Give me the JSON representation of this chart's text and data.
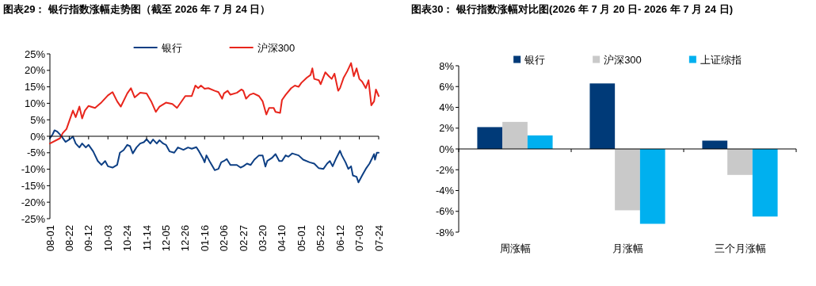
{
  "chart_data": [
    {
      "type": "line",
      "title": "图表29：  银行指数涨幅走势图（截至 2026 年 7 月 24 日）",
      "legend": "top",
      "xlim": [
        "2025-08-01",
        "2026-07-24"
      ],
      "xticks": [
        {
          "value": "2025-08-01",
          "label": "08-01"
        },
        {
          "value": "2025-08-22",
          "label": "08-22"
        },
        {
          "value": "2025-09-12",
          "label": "09-12"
        },
        {
          "value": "2025-10-03",
          "label": "10-03"
        },
        {
          "value": "2025-10-24",
          "label": "10-24"
        },
        {
          "value": "2025-11-14",
          "label": "11-14"
        },
        {
          "value": "2025-12-05",
          "label": "12-05"
        },
        {
          "value": "2025-12-26",
          "label": "12-26"
        },
        {
          "value": "2026-01-16",
          "label": "01-16"
        },
        {
          "value": "2026-02-06",
          "label": "02-06"
        },
        {
          "value": "2026-02-27",
          "label": "02-27"
        },
        {
          "value": "2026-03-20",
          "label": "03-20"
        },
        {
          "value": "2026-04-10",
          "label": "04-10"
        },
        {
          "value": "2026-05-01",
          "label": "05-01"
        },
        {
          "value": "2026-05-22",
          "label": "05-22"
        },
        {
          "value": "2026-06-12",
          "label": "06-12"
        },
        {
          "value": "2026-07-03",
          "label": "07-03"
        },
        {
          "value": "2026-07-24",
          "label": "07-24"
        }
      ],
      "ylim": [
        -25,
        25
      ],
      "yticks": [
        {
          "value": -25,
          "label": "-25%"
        },
        {
          "value": -20,
          "label": "-20%"
        },
        {
          "value": -15,
          "label": "-15%"
        },
        {
          "value": -10,
          "label": "-10%"
        },
        {
          "value": -5,
          "label": "-5%"
        },
        {
          "value": 0,
          "label": "0%"
        },
        {
          "value": 5,
          "label": "5%"
        },
        {
          "value": 10,
          "label": "10%"
        },
        {
          "value": 15,
          "label": "15%"
        },
        {
          "value": 20,
          "label": "20%"
        },
        {
          "value": 25,
          "label": "25%"
        }
      ],
      "series": [
        {
          "name": "银行",
          "color": "#0d3f84",
          "x": [
            "2025-08-01",
            "2025-08-04",
            "2025-08-06",
            "2025-08-09",
            "2025-08-13",
            "2025-08-18",
            "2025-08-22",
            "2025-08-26",
            "2025-08-29",
            "2025-09-02",
            "2025-09-05",
            "2025-09-09",
            "2025-09-12",
            "2025-09-17",
            "2025-09-22",
            "2025-09-26",
            "2025-09-30",
            "2025-10-03",
            "2025-10-08",
            "2025-10-13",
            "2025-10-16",
            "2025-10-20",
            "2025-10-24",
            "2025-10-27",
            "2025-10-30",
            "2025-11-03",
            "2025-11-07",
            "2025-11-11",
            "2025-11-14",
            "2025-11-18",
            "2025-11-21",
            "2025-11-25",
            "2025-11-28",
            "2025-12-02",
            "2025-12-05",
            "2025-12-09",
            "2025-12-14",
            "2025-12-18",
            "2025-12-24",
            "2025-12-29",
            "2026-01-02",
            "2026-01-07",
            "2026-01-10",
            "2026-01-14",
            "2026-01-16",
            "2026-01-18",
            "2026-01-22",
            "2026-01-27",
            "2026-01-31",
            "2026-02-03",
            "2026-02-06",
            "2026-02-09",
            "2026-02-13",
            "2026-02-20",
            "2026-02-24",
            "2026-02-27",
            "2026-03-03",
            "2026-03-07",
            "2026-03-11",
            "2026-03-16",
            "2026-03-20",
            "2026-03-23",
            "2026-03-25",
            "2026-03-30",
            "2026-04-03",
            "2026-04-07",
            "2026-04-10",
            "2026-04-14",
            "2026-04-17",
            "2026-04-21",
            "2026-04-28",
            "2026-05-03",
            "2026-05-10",
            "2026-05-15",
            "2026-05-20",
            "2026-05-25",
            "2026-05-29",
            "2026-06-01",
            "2026-06-04",
            "2026-06-08",
            "2026-06-12",
            "2026-06-14",
            "2026-06-18",
            "2026-06-21",
            "2026-06-24",
            "2026-06-26",
            "2026-06-30",
            "2026-07-02",
            "2026-07-06",
            "2026-07-10",
            "2026-07-14",
            "2026-07-17",
            "2026-07-19",
            "2026-07-20",
            "2026-07-22",
            "2026-07-24"
          ],
          "values": [
            -0.6,
            0.6,
            1.8,
            1.4,
            0.2,
            -1.7,
            -1.0,
            -0.1,
            -2.2,
            -3.4,
            -2.2,
            -3.4,
            -2.6,
            -4.6,
            -7.5,
            -8.7,
            -7.5,
            -9.1,
            -9.5,
            -8.7,
            -5.0,
            -4.2,
            -2.6,
            -3.0,
            -5.2,
            -3.4,
            -2.2,
            -1.8,
            -0.9,
            -2.2,
            -1.0,
            -2.2,
            -1.2,
            -2.2,
            -2.6,
            -4.6,
            -5.0,
            -3.4,
            -4.1,
            -3.4,
            -3.8,
            -3.3,
            -4.6,
            -6.6,
            -7.9,
            -5.8,
            -7.9,
            -10.3,
            -9.9,
            -7.9,
            -7.5,
            -6.9,
            -8.7,
            -8.7,
            -9.5,
            -9.1,
            -8.3,
            -8.7,
            -7.1,
            -5.8,
            -5.8,
            -9.2,
            -7.5,
            -6.6,
            -5.4,
            -7.5,
            -7.5,
            -5.8,
            -6.2,
            -5.2,
            -5.8,
            -7.1,
            -7.9,
            -8.3,
            -9.7,
            -9.9,
            -8.3,
            -7.5,
            -9.1,
            -6.6,
            -4.4,
            -5.8,
            -7.9,
            -9.9,
            -9.1,
            -11.9,
            -12.3,
            -14.0,
            -11.9,
            -9.9,
            -8.3,
            -6.6,
            -5.4,
            -7.1,
            -5.0,
            -5.0
          ]
        },
        {
          "name": "沪深300",
          "color": "#e8251c",
          "x": [
            "2025-08-01",
            "2025-08-12",
            "2025-08-15",
            "2025-08-19",
            "2025-08-22",
            "2025-08-26",
            "2025-08-29",
            "2025-09-02",
            "2025-09-05",
            "2025-09-08",
            "2025-09-12",
            "2025-09-19",
            "2025-09-26",
            "2025-10-03",
            "2025-10-08",
            "2025-10-13",
            "2025-10-17",
            "2025-10-24",
            "2025-10-28",
            "2025-11-01",
            "2025-11-07",
            "2025-11-14",
            "2025-11-19",
            "2025-11-24",
            "2025-11-28",
            "2025-12-05",
            "2025-12-12",
            "2025-12-17",
            "2025-12-26",
            "2026-01-02",
            "2026-01-06",
            "2026-01-09",
            "2026-01-12",
            "2026-01-16",
            "2026-01-20",
            "2026-01-27",
            "2026-01-31",
            "2026-02-04",
            "2026-02-06",
            "2026-02-10",
            "2026-02-13",
            "2026-02-20",
            "2026-02-25",
            "2026-02-27",
            "2026-03-02",
            "2026-03-06",
            "2026-03-10",
            "2026-03-16",
            "2026-03-20",
            "2026-03-24",
            "2026-03-27",
            "2026-04-01",
            "2026-04-03",
            "2026-04-08",
            "2026-04-10",
            "2026-04-14",
            "2026-04-20",
            "2026-04-24",
            "2026-04-28",
            "2026-05-01",
            "2026-05-07",
            "2026-05-11",
            "2026-05-13",
            "2026-05-15",
            "2026-05-20",
            "2026-05-22",
            "2026-05-27",
            "2026-05-31",
            "2026-06-03",
            "2026-06-06",
            "2026-06-10",
            "2026-06-12",
            "2026-06-16",
            "2026-06-20",
            "2026-06-24",
            "2026-06-27",
            "2026-06-30",
            "2026-07-03",
            "2026-07-06",
            "2026-07-10",
            "2026-07-13",
            "2026-07-16",
            "2026-07-19",
            "2026-07-21",
            "2026-07-24"
          ],
          "values": [
            -2.2,
            -0.6,
            1.0,
            2.2,
            4.6,
            7.8,
            5.8,
            9.0,
            5.4,
            7.8,
            9.2,
            8.6,
            10.3,
            12.4,
            13.4,
            10.6,
            9.0,
            13.0,
            14.6,
            11.8,
            13.2,
            13.0,
            10.6,
            7.4,
            9.0,
            10.2,
            9.8,
            8.6,
            12.2,
            12.2,
            15.4,
            14.6,
            15.4,
            14.4,
            14.6,
            13.8,
            13.4,
            11.4,
            13.0,
            13.8,
            12.6,
            13.2,
            14.2,
            13.8,
            11.4,
            12.6,
            13.0,
            12.2,
            10.6,
            6.6,
            8.6,
            8.6,
            7.4,
            7.1,
            11.0,
            12.6,
            14.6,
            15.4,
            15.0,
            16.2,
            17.8,
            18.6,
            20.6,
            17.4,
            17.0,
            15.8,
            19.4,
            18.2,
            17.4,
            19.0,
            13.8,
            14.6,
            17.8,
            19.8,
            22.2,
            18.2,
            20.6,
            17.4,
            16.6,
            14.6,
            17.0,
            9.4,
            10.6,
            14.2,
            12.2
          ]
        }
      ]
    },
    {
      "type": "bar",
      "title": "图表30：  银行指数涨幅对比图(2026 年 7 月 20 日- 2026 年 7 月 24 日)",
      "legend": "top",
      "categories": [
        "周涨幅",
        "月涨幅",
        "三个月涨幅"
      ],
      "ylim": [
        -8,
        8
      ],
      "yticks": [
        {
          "value": -8,
          "label": "-8%"
        },
        {
          "value": -6,
          "label": "-6%"
        },
        {
          "value": -4,
          "label": "-4%"
        },
        {
          "value": -2,
          "label": "-2%"
        },
        {
          "value": 0,
          "label": "0%"
        },
        {
          "value": 2,
          "label": "2%"
        },
        {
          "value": 4,
          "label": "4%"
        },
        {
          "value": 6,
          "label": "6%"
        },
        {
          "value": 8,
          "label": "8%"
        }
      ],
      "series": [
        {
          "name": "银行",
          "color": "#003a78",
          "values": [
            2.1,
            6.3,
            0.8
          ]
        },
        {
          "name": "沪深300",
          "color": "#c9c9c9",
          "values": [
            2.6,
            -5.9,
            -2.5
          ]
        },
        {
          "name": "上证综指",
          "color": "#00b0ef",
          "values": [
            1.3,
            -7.2,
            -6.5
          ]
        }
      ]
    }
  ]
}
